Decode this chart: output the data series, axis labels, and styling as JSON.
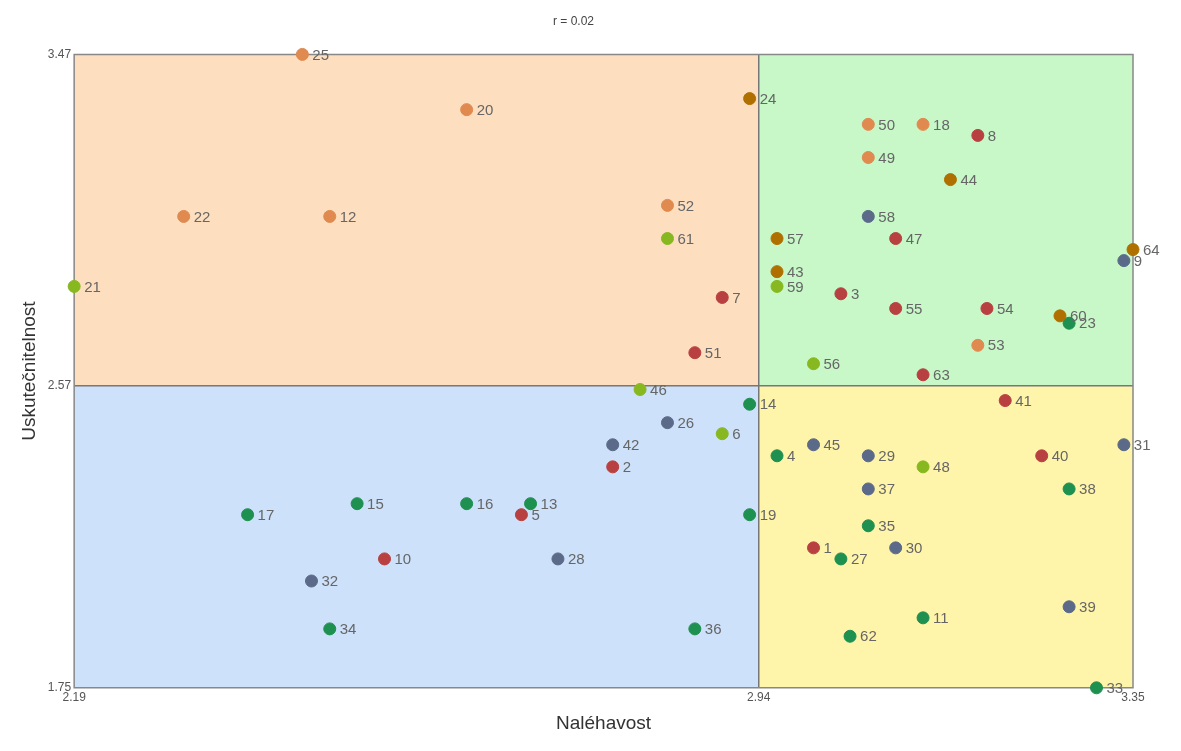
{
  "chart_data": {
    "type": "scatter",
    "title": "r = 0.02",
    "xlabel": "Naléhavost",
    "ylabel": "Uskutečnitelnost",
    "xlim": [
      2.19,
      3.35
    ],
    "xticks": [
      2.19,
      2.94,
      3.35
    ],
    "ylim": [
      1.75,
      3.47
    ],
    "yticks": [
      1.75,
      2.57,
      3.47
    ],
    "grid": false,
    "marker": "circle",
    "ref_lines": [
      {
        "axis": "x",
        "value": 2.94,
        "color": "#777777"
      },
      {
        "axis": "y",
        "value": 2.57,
        "color": "#777777"
      }
    ],
    "x": [
      3.0,
      2.78,
      3.03,
      2.96,
      2.68,
      2.9,
      2.9,
      3.18,
      3.34,
      2.53,
      3.12,
      2.47,
      2.69,
      2.93,
      2.5,
      2.62,
      2.38,
      3.12,
      2.93,
      2.62,
      2.19,
      2.31,
      3.28,
      2.93,
      2.44,
      2.84,
      3.03,
      2.72,
      3.06,
      3.09,
      3.34,
      2.45,
      3.31,
      2.47,
      3.06,
      2.87,
      3.06,
      3.28,
      3.28,
      3.25,
      3.21,
      2.78,
      2.96,
      3.15,
      3.0,
      2.81,
      3.09,
      3.12,
      3.06,
      3.06,
      2.87,
      2.84,
      3.18,
      3.19,
      3.09,
      3.0,
      2.96,
      3.06,
      2.96,
      3.27,
      2.84,
      3.04,
      3.12,
      3.35
    ],
    "values": [
      2.13,
      2.35,
      2.82,
      2.38,
      2.22,
      2.44,
      2.81,
      3.25,
      2.91,
      2.1,
      1.94,
      3.03,
      2.25,
      2.52,
      2.25,
      2.25,
      2.22,
      3.28,
      2.22,
      3.32,
      2.84,
      3.03,
      2.74,
      3.35,
      3.47,
      2.47,
      2.1,
      2.1,
      2.38,
      2.13,
      2.41,
      2.04,
      1.75,
      1.91,
      2.19,
      1.91,
      2.29,
      2.29,
      1.97,
      2.38,
      2.53,
      2.41,
      2.88,
      3.13,
      2.41,
      2.56,
      2.97,
      2.35,
      3.19,
      3.28,
      2.66,
      3.06,
      2.68,
      2.78,
      2.78,
      2.63,
      2.97,
      3.03,
      2.84,
      2.76,
      2.97,
      1.89,
      2.6,
      2.94
    ],
    "colors": [
      "#b84040",
      "#b84040",
      "#b84040",
      "#1e9050",
      "#b84040",
      "#88b820",
      "#b84040",
      "#b84040",
      "#5a6a88",
      "#b84040",
      "#1e9050",
      "#e08a50",
      "#1e9050",
      "#1e9050",
      "#1e9050",
      "#1e9050",
      "#1e9050",
      "#e08a50",
      "#1e9050",
      "#e08a50",
      "#88b820",
      "#e08a50",
      "#1e9050",
      "#b07000",
      "#e08a50",
      "#5a6a88",
      "#1e9050",
      "#5a6a88",
      "#5a6a88",
      "#5a6a88",
      "#5a6a88",
      "#5a6a88",
      "#1e9050",
      "#1e9050",
      "#1e9050",
      "#1e9050",
      "#5a6a88",
      "#1e9050",
      "#5a6a88",
      "#b84040",
      "#b84040",
      "#5a6a88",
      "#b07000",
      "#b07000",
      "#5a6a88",
      "#88b820",
      "#b84040",
      "#88b820",
      "#e08a50",
      "#e08a50",
      "#b84040",
      "#e08a50",
      "#e08a50",
      "#b84040",
      "#b84040",
      "#88b820",
      "#b07000",
      "#5a6a88",
      "#88b820",
      "#b07000",
      "#88b820",
      "#1e9050",
      "#b84040",
      "#b07000"
    ],
    "annotations": [
      {
        "text": "1",
        "x": 3.0,
        "y": 2.13
      },
      {
        "text": "2",
        "x": 2.78,
        "y": 2.35
      },
      {
        "text": "3",
        "x": 3.03,
        "y": 2.82
      },
      {
        "text": "4",
        "x": 2.96,
        "y": 2.38
      },
      {
        "text": "5",
        "x": 2.68,
        "y": 2.22
      },
      {
        "text": "6",
        "x": 2.9,
        "y": 2.44
      },
      {
        "text": "7",
        "x": 2.9,
        "y": 2.81
      },
      {
        "text": "8",
        "x": 3.18,
        "y": 3.25
      },
      {
        "text": "9",
        "x": 3.34,
        "y": 2.91
      },
      {
        "text": "10",
        "x": 2.53,
        "y": 2.1
      },
      {
        "text": "11",
        "x": 3.12,
        "y": 1.94
      },
      {
        "text": "12",
        "x": 2.47,
        "y": 3.03
      },
      {
        "text": "13",
        "x": 2.69,
        "y": 2.25
      },
      {
        "text": "14",
        "x": 2.93,
        "y": 2.52
      },
      {
        "text": "15",
        "x": 2.5,
        "y": 2.25
      },
      {
        "text": "16",
        "x": 2.62,
        "y": 2.25
      },
      {
        "text": "17",
        "x": 2.38,
        "y": 2.22
      },
      {
        "text": "18",
        "x": 3.12,
        "y": 3.28
      },
      {
        "text": "19",
        "x": 2.93,
        "y": 2.22
      },
      {
        "text": "20",
        "x": 2.62,
        "y": 3.32
      },
      {
        "text": "21",
        "x": 2.19,
        "y": 2.84
      },
      {
        "text": "22",
        "x": 2.31,
        "y": 3.03
      },
      {
        "text": "23",
        "x": 3.28,
        "y": 2.74
      },
      {
        "text": "24",
        "x": 2.93,
        "y": 3.35
      },
      {
        "text": "25",
        "x": 2.44,
        "y": 3.47
      },
      {
        "text": "26",
        "x": 2.84,
        "y": 2.47
      },
      {
        "text": "27",
        "x": 3.03,
        "y": 2.1
      },
      {
        "text": "28",
        "x": 2.72,
        "y": 2.1
      },
      {
        "text": "29",
        "x": 3.06,
        "y": 2.38
      },
      {
        "text": "30",
        "x": 3.09,
        "y": 2.13
      },
      {
        "text": "31",
        "x": 3.34,
        "y": 2.41
      },
      {
        "text": "32",
        "x": 2.45,
        "y": 2.04
      },
      {
        "text": "33",
        "x": 3.31,
        "y": 1.75
      },
      {
        "text": "34",
        "x": 2.47,
        "y": 1.91
      },
      {
        "text": "35",
        "x": 3.06,
        "y": 2.19
      },
      {
        "text": "36",
        "x": 2.87,
        "y": 1.91
      },
      {
        "text": "37",
        "x": 3.06,
        "y": 2.29
      },
      {
        "text": "38",
        "x": 3.28,
        "y": 2.29
      },
      {
        "text": "39",
        "x": 3.28,
        "y": 1.97
      },
      {
        "text": "40",
        "x": 3.25,
        "y": 2.38
      },
      {
        "text": "41",
        "x": 3.21,
        "y": 2.53
      },
      {
        "text": "42",
        "x": 2.78,
        "y": 2.41
      },
      {
        "text": "43",
        "x": 2.96,
        "y": 2.88
      },
      {
        "text": "44",
        "x": 3.15,
        "y": 3.13
      },
      {
        "text": "45",
        "x": 3.0,
        "y": 2.41
      },
      {
        "text": "46",
        "x": 2.81,
        "y": 2.56
      },
      {
        "text": "47",
        "x": 3.09,
        "y": 2.97
      },
      {
        "text": "48",
        "x": 3.12,
        "y": 2.35
      },
      {
        "text": "49",
        "x": 3.06,
        "y": 3.19
      },
      {
        "text": "50",
        "x": 3.06,
        "y": 3.28
      },
      {
        "text": "51",
        "x": 2.87,
        "y": 2.66
      },
      {
        "text": "52",
        "x": 2.84,
        "y": 3.06
      },
      {
        "text": "53",
        "x": 3.18,
        "y": 2.68
      },
      {
        "text": "54",
        "x": 3.19,
        "y": 2.78
      },
      {
        "text": "55",
        "x": 3.09,
        "y": 2.78
      },
      {
        "text": "56",
        "x": 3.0,
        "y": 2.63
      },
      {
        "text": "57",
        "x": 2.96,
        "y": 2.97
      },
      {
        "text": "58",
        "x": 3.06,
        "y": 3.03
      },
      {
        "text": "59",
        "x": 2.96,
        "y": 2.84
      },
      {
        "text": "60",
        "x": 3.27,
        "y": 2.76
      },
      {
        "text": "61",
        "x": 2.84,
        "y": 2.97
      },
      {
        "text": "62",
        "x": 3.04,
        "y": 1.89
      },
      {
        "text": "63",
        "x": 3.12,
        "y": 2.6
      },
      {
        "text": "64",
        "x": 3.35,
        "y": 2.94
      }
    ]
  }
}
